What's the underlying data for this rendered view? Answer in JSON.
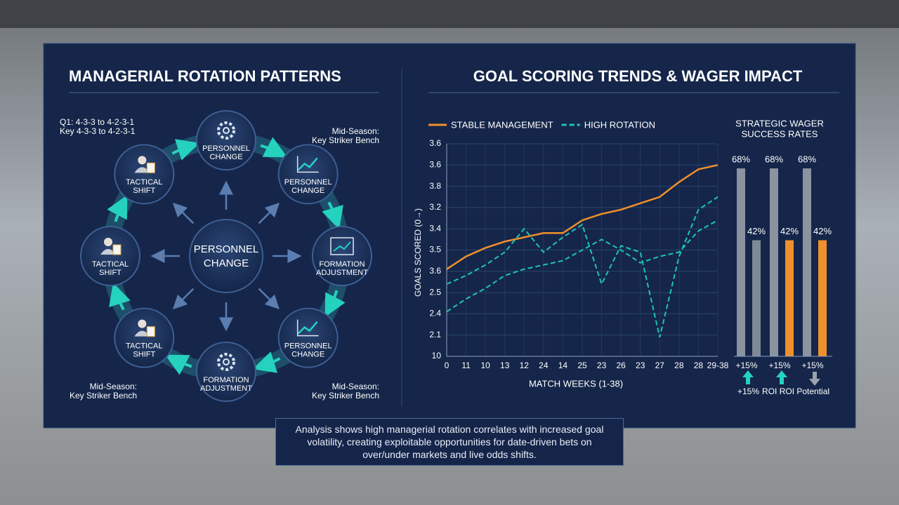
{
  "diagram": {
    "title": "MANAGERIAL ROTATION PATTERNS",
    "center": [
      "PERSONNEL",
      "CHANGE"
    ],
    "nodes": [
      {
        "lines": [
          "PERSONNEL",
          "CHANGE"
        ]
      },
      {
        "lines": [
          "PERSONNEL",
          "CHANGE"
        ]
      },
      {
        "lines": [
          "FORMATION",
          "ADJUSTMENT"
        ]
      },
      {
        "lines": [
          "PERSONNEL",
          "CHANGE"
        ]
      },
      {
        "lines": [
          "FORMATION",
          "ADJUSTMENT"
        ]
      },
      {
        "lines": [
          "TACTICAL",
          "SHIFT"
        ]
      },
      {
        "lines": [
          "TACTICAL",
          "SHIFT"
        ]
      },
      {
        "lines": [
          "TACTICAL",
          "SHIFT"
        ]
      }
    ],
    "notes": [
      {
        "lines": [
          "Q1: 4-3-3 to 4-2-3-1",
          "Key 4-3-3 to 4-2-3-1"
        ]
      },
      {
        "lines": [
          "Mid-Season:",
          "Key Striker Bench"
        ]
      },
      {
        "lines": [
          "Mid-Season:",
          "Key Striker Bench"
        ]
      },
      {
        "lines": [
          "Mid-Season:",
          "Key Striker Bench"
        ]
      }
    ]
  },
  "heading": "GOAL SCORING TRENDS & WAGER IMPACT",
  "chart_data": [
    {
      "type": "line",
      "x_label": "MATCH WEEKS (1-38)",
      "y_label": "GOALS SCORED (0→)",
      "categories": [
        "0",
        "11",
        "10",
        "13",
        "12",
        "24",
        "14",
        "25",
        "23",
        "26",
        "23",
        "27",
        "28",
        "28",
        "29-38"
      ],
      "ylim": [
        0,
        10
      ],
      "yticks": [
        {
          "value": 10,
          "label": "3.6"
        },
        {
          "value": 9,
          "label": "3.6"
        },
        {
          "value": 8,
          "label": "3.8"
        },
        {
          "value": 7,
          "label": "3.2"
        },
        {
          "value": 6,
          "label": "3.4"
        },
        {
          "value": 5,
          "label": "3.5"
        },
        {
          "value": 4,
          "label": "3.6"
        },
        {
          "value": 3,
          "label": "2.5"
        },
        {
          "value": 2,
          "label": "2.4"
        },
        {
          "value": 1,
          "label": "2.1"
        },
        {
          "value": 0,
          "label": "10"
        }
      ],
      "grid": true,
      "series": [
        {
          "name": "STABLE MANAGEMENT",
          "color": "#f0902a",
          "style": "solid",
          "values": [
            4.1,
            4.7,
            5.1,
            5.4,
            5.6,
            5.8,
            5.8,
            6.4,
            6.7,
            6.9,
            7.2,
            7.5,
            8.2,
            8.8,
            9.0
          ]
        },
        {
          "name": "HIGH ROTATION",
          "color": "#1fc4b4",
          "style": "dashed",
          "values": [
            3.4,
            3.8,
            4.3,
            4.9,
            6.0,
            4.9,
            5.6,
            6.2,
            3.4,
            5.2,
            4.9,
            0.9,
            4.7,
            6.9,
            7.5
          ]
        },
        {
          "color": "#1fc4b4",
          "style": "dashed",
          "values": [
            2.1,
            2.7,
            3.2,
            3.8,
            4.1,
            4.3,
            4.5,
            5.0,
            5.5,
            5.0,
            4.4,
            4.7,
            4.9,
            5.9,
            6.4
          ]
        }
      ]
    },
    {
      "type": "bar",
      "title": [
        "STRATEGIC WAGER",
        "SUCCESS RATES"
      ],
      "categories": [
        "+15%",
        "+15%",
        "+15%"
      ],
      "ylim": [
        0,
        100
      ],
      "series": [
        {
          "color": "#8a939f",
          "values": [
            68,
            68,
            68
          ],
          "value_labels": [
            "68%",
            "68%",
            "68%"
          ]
        },
        {
          "colors": [
            "#7f8995",
            "#f0902a",
            "#f0902a"
          ],
          "values": [
            42,
            42,
            42
          ],
          "value_labels": [
            "42%",
            "42%",
            "42%"
          ]
        }
      ],
      "annotation": [
        "+15%",
        "ROI ROI Potential"
      ]
    }
  ],
  "analysis": "Analysis shows high managerial rotation correlates with increased goal volatility, creating exploitable opportunities for date-driven bets on over/under markets and live odds shifts."
}
